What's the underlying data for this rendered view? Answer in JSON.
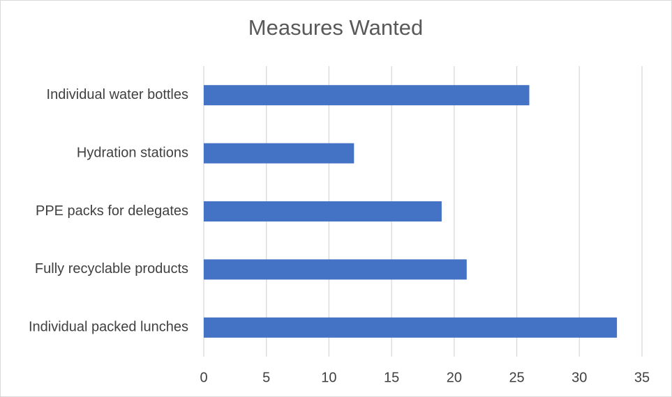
{
  "chart_data": {
    "type": "hbar",
    "title": "Measures Wanted",
    "categories": [
      "Individual water bottles",
      "Hydration stations",
      "PPE packs for delegates",
      "Fully recyclable products",
      "Individual packed lunches"
    ],
    "values": [
      26,
      12,
      19,
      21,
      33
    ],
    "color": "#4472c4",
    "xlim": [
      0,
      35
    ],
    "xticks": [
      0,
      5,
      10,
      15,
      20,
      25,
      30,
      35
    ],
    "grid": true
  }
}
